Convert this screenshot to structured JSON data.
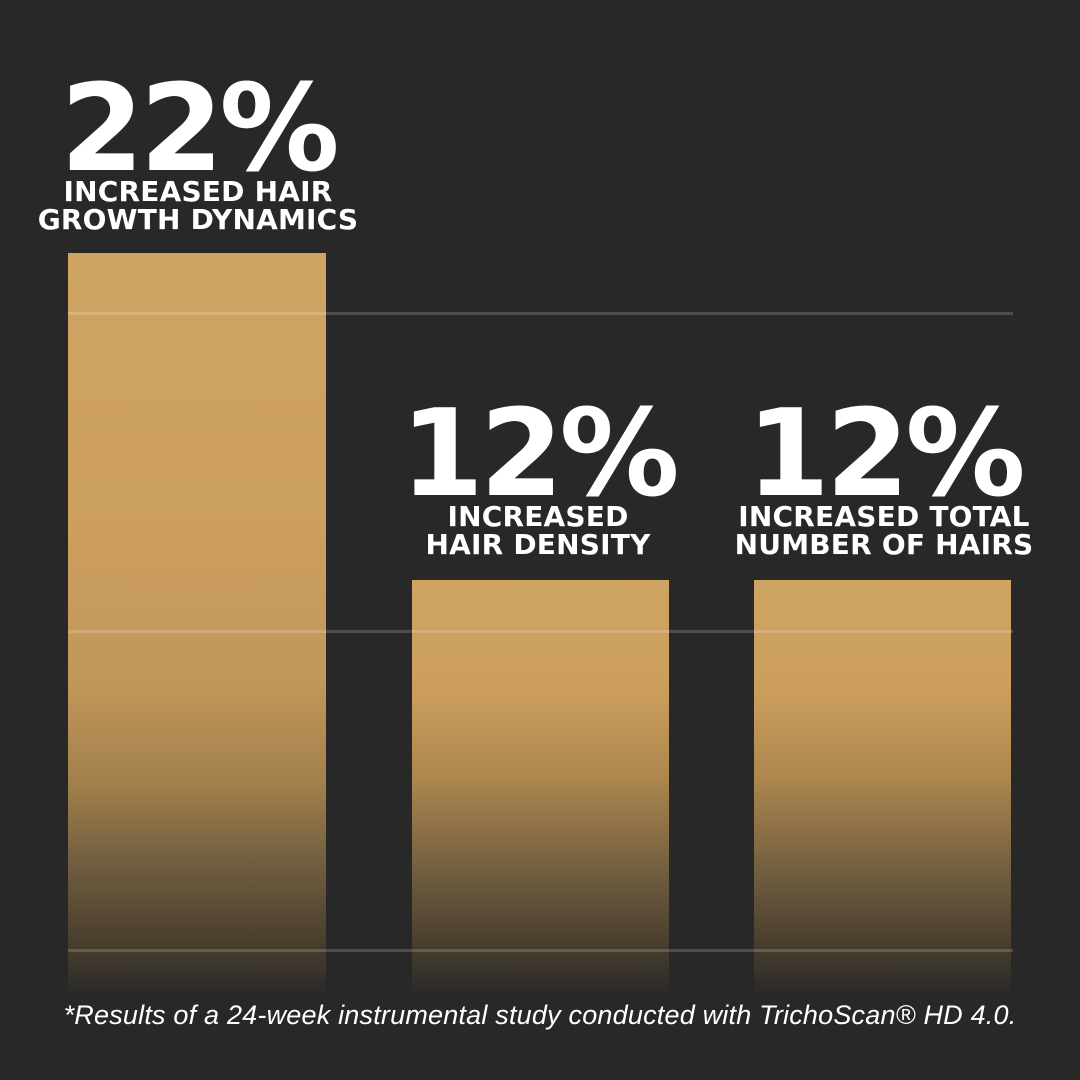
{
  "background_color": "#282828",
  "bar_color_top": "#cfa463",
  "bar_color_bottom": "#453b2b",
  "text_color": "#ffffff",
  "stats": [
    {
      "value": "22%",
      "label_line1": "INCREASED HAIR",
      "label_line2": "GROWTH DYNAMICS"
    },
    {
      "value": "12%",
      "label_line1": "INCREASED",
      "label_line2": "HAIR DENSITY"
    },
    {
      "value": "12%",
      "label_line1": "INCREASED TOTAL",
      "label_line2": "NUMBER OF HAIRS"
    }
  ],
  "footnote": "*Results of a 24-week instrumental study conducted with TrichoScan® HD 4.0.",
  "chart_data": {
    "type": "bar",
    "categories": [
      "Increased hair growth dynamics",
      "Increased hair density",
      "Increased total number of hairs"
    ],
    "values": [
      22,
      12,
      12
    ],
    "value_labels": [
      "22%",
      "12%",
      "12%"
    ],
    "unit": "%",
    "title": "",
    "xlabel": "",
    "ylabel": "",
    "ylim": [
      0,
      22
    ],
    "gridlines": [
      0,
      10,
      20
    ],
    "grid": true,
    "legend_position": "none",
    "annotations": [
      "*Results of a 24-week instrumental study conducted with TrichoScan® HD 4.0."
    ]
  }
}
